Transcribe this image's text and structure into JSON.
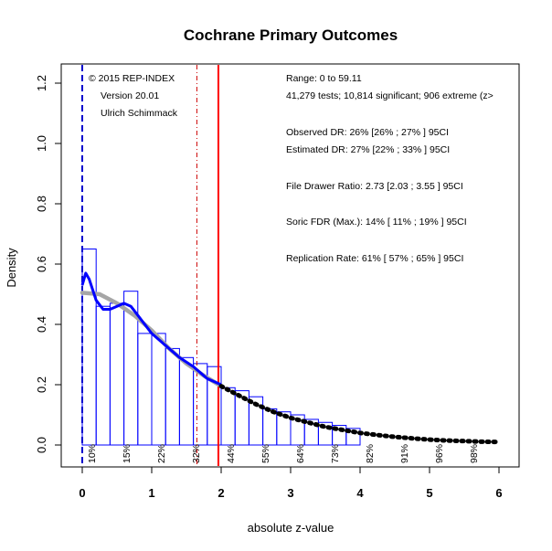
{
  "chart_data": {
    "type": "histogram",
    "title": "Cochrane Primary Outcomes",
    "xlabel": "absolute z-value",
    "ylabel": "Density",
    "xlim": [
      0,
      6
    ],
    "ylim": [
      0,
      1.2
    ],
    "x_ticks": [
      "0",
      "1",
      "2",
      "3",
      "4",
      "5",
      "6"
    ],
    "y_ticks": [
      "0.0",
      "0.2",
      "0.4",
      "0.6",
      "0.8",
      "1.0",
      "1.2"
    ],
    "grid": false,
    "bins": {
      "width": 0.2,
      "edges_start": 0.0,
      "heights": [
        0.65,
        0.46,
        0.47,
        0.51,
        0.37,
        0.37,
        0.32,
        0.29,
        0.27,
        0.26,
        0.19,
        0.18,
        0.16,
        0.12,
        0.11,
        0.1,
        0.085,
        0.075,
        0.065,
        0.055
      ]
    },
    "series": [
      {
        "name": "kernel density",
        "color": "#0000ff",
        "x": [
          0.0,
          0.05,
          0.1,
          0.2,
          0.3,
          0.4,
          0.5,
          0.6,
          0.7,
          0.8,
          0.9,
          1.0,
          1.2,
          1.4,
          1.6,
          1.8,
          2.0
        ],
        "y": [
          0.53,
          0.57,
          0.55,
          0.48,
          0.45,
          0.45,
          0.46,
          0.47,
          0.46,
          0.43,
          0.4,
          0.37,
          0.33,
          0.29,
          0.26,
          0.22,
          0.2
        ]
      },
      {
        "name": "fitted (grey)",
        "color": "#a6a6a6",
        "x": [
          0.0,
          0.25,
          0.5,
          0.75,
          1.0,
          1.25,
          1.5,
          1.75,
          2.0
        ],
        "y": [
          0.505,
          0.5,
          0.47,
          0.43,
          0.38,
          0.32,
          0.27,
          0.23,
          0.195
        ]
      },
      {
        "name": "fitted (black dotted)",
        "color": "#000000",
        "x": [
          2.0,
          2.25,
          2.5,
          2.75,
          3.0,
          3.25,
          3.5,
          3.75,
          4.0,
          4.25,
          4.5,
          4.75,
          5.0,
          5.25,
          5.5,
          5.75,
          6.0
        ],
        "y": [
          0.195,
          0.165,
          0.135,
          0.11,
          0.09,
          0.075,
          0.06,
          0.05,
          0.04,
          0.033,
          0.027,
          0.022,
          0.018,
          0.015,
          0.013,
          0.011,
          0.01
        ]
      }
    ],
    "vlines": [
      {
        "x": 0.0,
        "style": "dashed",
        "color": "#0000cc"
      },
      {
        "x": 1.65,
        "style": "dashdot",
        "color": "#cc0000"
      },
      {
        "x": 1.96,
        "style": "solid",
        "color": "#ff0000"
      }
    ],
    "percent_labels": [
      {
        "x": 0.15,
        "text": "10%"
      },
      {
        "x": 0.65,
        "text": "15%"
      },
      {
        "x": 1.15,
        "text": "22%"
      },
      {
        "x": 1.65,
        "text": "32%"
      },
      {
        "x": 2.15,
        "text": "44%"
      },
      {
        "x": 2.65,
        "text": "55%"
      },
      {
        "x": 3.15,
        "text": "64%"
      },
      {
        "x": 3.65,
        "text": "73%"
      },
      {
        "x": 4.15,
        "text": "82%"
      },
      {
        "x": 4.65,
        "text": "91%"
      },
      {
        "x": 5.15,
        "text": "96%"
      },
      {
        "x": 5.65,
        "text": "98%"
      }
    ],
    "left_annotations": [
      "© 2015 REP-INDEX",
      "Version 20.01",
      "Ulrich Schimmack"
    ],
    "right_annotations": [
      "Range: 0 to 59.11",
      "41,279 tests; 10,814 significant; 906 extreme (z>",
      "Observed DR: 26% [26% ; 27% ] 95CI",
      "Estimated DR: 27% [22% ; 33% ] 95CI",
      "File Drawer Ratio: 2.73 [2.03 ; 3.55 ] 95CI",
      "Soric FDR (Max.): 14% [ 11% ; 19% ] 95CI",
      "Replication Rate: 61% [ 57% ; 65% ] 95CI"
    ]
  }
}
